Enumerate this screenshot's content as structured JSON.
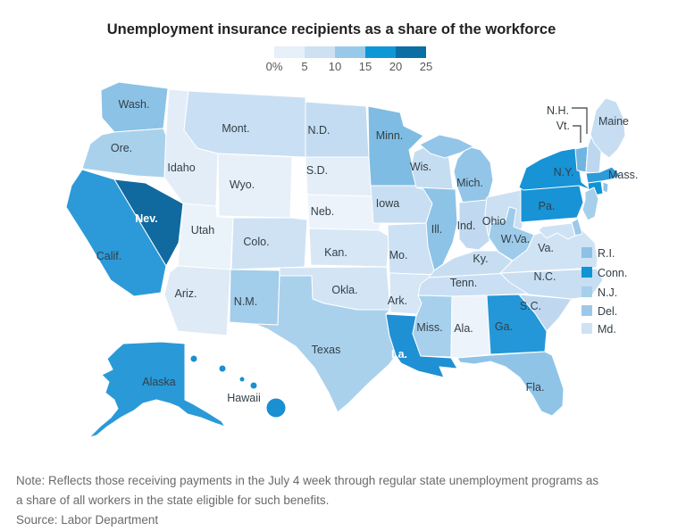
{
  "title": "Unemployment insurance recipients as a share of the workforce",
  "legend": {
    "tick_labels": [
      "0%",
      "5",
      "10",
      "15",
      "20",
      "25"
    ],
    "colors": [
      "#e7eff8",
      "#cde1f3",
      "#98c9e9",
      "#0e97d7",
      "#0b6fa4"
    ]
  },
  "note_line1": "Note: Reflects those receiving payments in the July 4 week through regular state unemployment programs as",
  "note_line2": "a share of all workers in the state eligible for such benefits.",
  "source": "Source: Labor Department",
  "map": {
    "default_label_color": "#333f47",
    "states": [
      {
        "id": "wash",
        "label": "Wash.",
        "fill": "#8cc2e6",
        "range": "10-15"
      },
      {
        "id": "ore",
        "label": "Ore.",
        "fill": "#a9d1ec",
        "range": "10-15"
      },
      {
        "id": "calif",
        "label": "Calif.",
        "fill": "#2c9ad8",
        "range": "15-20"
      },
      {
        "id": "nev",
        "label": "Nev.",
        "fill": "#10699f",
        "range": "20-25",
        "label_color": "#ffffff"
      },
      {
        "id": "idaho",
        "label": "Idaho",
        "fill": "#e3edf8",
        "range": "0-5"
      },
      {
        "id": "mont",
        "label": "Mont.",
        "fill": "#c9dff3",
        "range": "5-10"
      },
      {
        "id": "wyo",
        "label": "Wyo.",
        "fill": "#e7f0f9",
        "range": "0-5"
      },
      {
        "id": "utah",
        "label": "Utah",
        "fill": "#eaf2fa",
        "range": "0-5"
      },
      {
        "id": "colo",
        "label": "Colo.",
        "fill": "#cfe2f4",
        "range": "5-10"
      },
      {
        "id": "ariz",
        "label": "Ariz.",
        "fill": "#deeaf6",
        "range": "0-5"
      },
      {
        "id": "nm",
        "label": "N.M.",
        "fill": "#a2cdeb",
        "range": "10-15"
      },
      {
        "id": "nd",
        "label": "N.D.",
        "fill": "#c3dcf1",
        "range": "5-10"
      },
      {
        "id": "sd",
        "label": "S.D.",
        "fill": "#e4eef8",
        "range": "0-5"
      },
      {
        "id": "neb",
        "label": "Neb.",
        "fill": "#ecf3fb",
        "range": "0-5"
      },
      {
        "id": "kan",
        "label": "Kan.",
        "fill": "#d7e7f6",
        "range": "5-10"
      },
      {
        "id": "okla",
        "label": "Okla.",
        "fill": "#d3e4f5",
        "range": "5-10"
      },
      {
        "id": "texas",
        "label": "Texas",
        "fill": "#aad1ec",
        "range": "10-15"
      },
      {
        "id": "minn",
        "label": "Minn.",
        "fill": "#7fbce3",
        "range": "10-15"
      },
      {
        "id": "iowa",
        "label": "Iowa",
        "fill": "#c8def2",
        "range": "5-10"
      },
      {
        "id": "mo",
        "label": "Mo.",
        "fill": "#cde1f4",
        "range": "5-10"
      },
      {
        "id": "ark",
        "label": "Ark.",
        "fill": "#d6e6f5",
        "range": "5-10"
      },
      {
        "id": "la",
        "label": "La.",
        "fill": "#1f90d3",
        "range": "15-20",
        "label_color": "#ffffff"
      },
      {
        "id": "wis",
        "label": "Wis.",
        "fill": "#c5ddf1",
        "range": "5-10"
      },
      {
        "id": "ill",
        "label": "Ill.",
        "fill": "#8dc3e7",
        "range": "10-15"
      },
      {
        "id": "mich",
        "label": "Mich.",
        "fill": "#93c5e8",
        "range": "10-15"
      },
      {
        "id": "ind",
        "label": "Ind.",
        "fill": "#c0d9f0",
        "range": "5-10"
      },
      {
        "id": "ohio",
        "label": "Ohio",
        "fill": "#cce0f3",
        "range": "5-10"
      },
      {
        "id": "ky",
        "label": "Ky.",
        "fill": "#c7def2",
        "range": "5-10"
      },
      {
        "id": "tenn",
        "label": "Tenn.",
        "fill": "#cadff3",
        "range": "5-10"
      },
      {
        "id": "miss",
        "label": "Miss.",
        "fill": "#a7d0ec",
        "range": "10-15"
      },
      {
        "id": "ala",
        "label": "Ala.",
        "fill": "#edf3fb",
        "range": "0-5"
      },
      {
        "id": "ga",
        "label": "Ga.",
        "fill": "#2497d8",
        "range": "15-20"
      },
      {
        "id": "fla",
        "label": "Fla.",
        "fill": "#8fc4e7",
        "range": "10-15"
      },
      {
        "id": "sc",
        "label": "S.C.",
        "fill": "#bfd8ef",
        "range": "5-10"
      },
      {
        "id": "nc",
        "label": "N.C.",
        "fill": "#c8def2",
        "range": "5-10"
      },
      {
        "id": "va",
        "label": "Va.",
        "fill": "#d0e3f4",
        "range": "5-10"
      },
      {
        "id": "wva",
        "label": "W.Va.",
        "fill": "#9ecbea",
        "range": "10-15"
      },
      {
        "id": "pa",
        "label": "Pa.",
        "fill": "#1793d6",
        "range": "15-20"
      },
      {
        "id": "ny",
        "label": "N.Y.",
        "fill": "#1793d6",
        "range": "15-20"
      },
      {
        "id": "vt",
        "label": "Vt.",
        "fill": "#6fb5e0",
        "range": "10-15"
      },
      {
        "id": "nh",
        "label": "N.H.",
        "fill": "#bdd7ef",
        "range": "5-10"
      },
      {
        "id": "maine",
        "label": "Maine",
        "fill": "#c6ddf2",
        "range": "5-10"
      },
      {
        "id": "mass",
        "label": "Mass.",
        "fill": "#2d9bd9",
        "range": "15-20"
      },
      {
        "id": "conn",
        "label": "",
        "fill": "#0f94d6",
        "range": "15-20"
      },
      {
        "id": "ri",
        "label": "",
        "fill": "#8cc2e6",
        "range": "10-15"
      },
      {
        "id": "nj",
        "label": "",
        "fill": "#a6cfeb",
        "range": "10-15"
      },
      {
        "id": "del",
        "label": "",
        "fill": "#9cc9e9",
        "range": "10-15"
      },
      {
        "id": "md",
        "label": "",
        "fill": "#cfe2f4",
        "range": "5-10"
      },
      {
        "id": "alaska",
        "label": "Alaska",
        "fill": "#2a99d8",
        "range": "15-20"
      },
      {
        "id": "hawaii",
        "label": "Hawaii",
        "fill": "#1a8fd1",
        "range": "15-20"
      }
    ],
    "side_legend": [
      {
        "id": "ri",
        "label": "R.I.",
        "fill": "#8cc2e6"
      },
      {
        "id": "conn",
        "label": "Conn.",
        "fill": "#0f94d6"
      },
      {
        "id": "nj",
        "label": "N.J.",
        "fill": "#a6cfeb"
      },
      {
        "id": "del",
        "label": "Del.",
        "fill": "#9cc9e9"
      },
      {
        "id": "md",
        "label": "Md.",
        "fill": "#cfe2f4"
      }
    ]
  },
  "chart_data": {
    "type": "heatmap",
    "subtype": "choropleth-us-states",
    "title": "Unemployment insurance recipients as a share of the workforce",
    "unit": "% of workers eligible for regular state unemployment benefits",
    "legend_bins": [
      "0-5",
      "5-10",
      "10-15",
      "15-20",
      "20-25"
    ],
    "legend_bin_colors": [
      "#e7eff8",
      "#cde1f3",
      "#98c9e9",
      "#0e97d7",
      "#0b6fa4"
    ],
    "legend_position": "top-center",
    "states": [
      [
        "Washington",
        "10-15"
      ],
      [
        "Oregon",
        "10-15"
      ],
      [
        "California",
        "15-20"
      ],
      [
        "Nevada",
        "20-25"
      ],
      [
        "Idaho",
        "0-5"
      ],
      [
        "Montana",
        "5-10"
      ],
      [
        "Wyoming",
        "0-5"
      ],
      [
        "Utah",
        "0-5"
      ],
      [
        "Colorado",
        "5-10"
      ],
      [
        "Arizona",
        "0-5"
      ],
      [
        "New Mexico",
        "10-15"
      ],
      [
        "North Dakota",
        "5-10"
      ],
      [
        "South Dakota",
        "0-5"
      ],
      [
        "Nebraska",
        "0-5"
      ],
      [
        "Kansas",
        "5-10"
      ],
      [
        "Oklahoma",
        "5-10"
      ],
      [
        "Texas",
        "10-15"
      ],
      [
        "Minnesota",
        "10-15"
      ],
      [
        "Iowa",
        "5-10"
      ],
      [
        "Missouri",
        "5-10"
      ],
      [
        "Arkansas",
        "5-10"
      ],
      [
        "Louisiana",
        "15-20"
      ],
      [
        "Wisconsin",
        "5-10"
      ],
      [
        "Illinois",
        "10-15"
      ],
      [
        "Michigan",
        "10-15"
      ],
      [
        "Indiana",
        "5-10"
      ],
      [
        "Ohio",
        "5-10"
      ],
      [
        "Kentucky",
        "5-10"
      ],
      [
        "Tennessee",
        "5-10"
      ],
      [
        "Mississippi",
        "10-15"
      ],
      [
        "Alabama",
        "0-5"
      ],
      [
        "Georgia",
        "15-20"
      ],
      [
        "Florida",
        "10-15"
      ],
      [
        "South Carolina",
        "5-10"
      ],
      [
        "North Carolina",
        "5-10"
      ],
      [
        "Virginia",
        "5-10"
      ],
      [
        "West Virginia",
        "10-15"
      ],
      [
        "Pennsylvania",
        "15-20"
      ],
      [
        "New York",
        "15-20"
      ],
      [
        "Vermont",
        "10-15"
      ],
      [
        "New Hampshire",
        "5-10"
      ],
      [
        "Maine",
        "5-10"
      ],
      [
        "Massachusetts",
        "15-20"
      ],
      [
        "Connecticut",
        "15-20"
      ],
      [
        "Rhode Island",
        "10-15"
      ],
      [
        "New Jersey",
        "10-15"
      ],
      [
        "Delaware",
        "10-15"
      ],
      [
        "Maryland",
        "5-10"
      ],
      [
        "Alaska",
        "15-20"
      ],
      [
        "Hawaii",
        "15-20"
      ]
    ]
  }
}
